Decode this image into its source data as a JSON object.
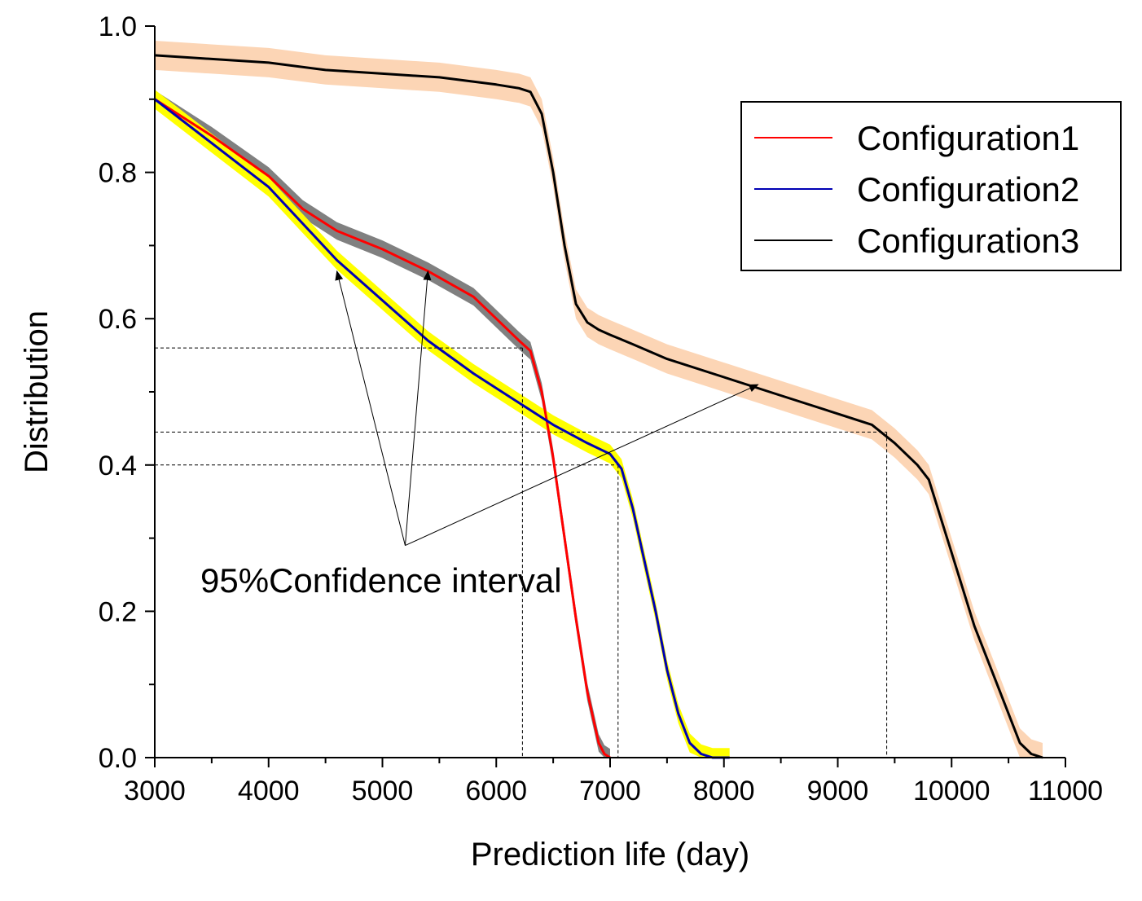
{
  "chart_data": {
    "type": "line",
    "title": "",
    "xlabel": "Prediction life (day)",
    "ylabel": "Distribution",
    "xlim": [
      3000,
      11000
    ],
    "ylim": [
      0,
      1.0
    ],
    "x_ticks": [
      3000,
      4000,
      5000,
      6000,
      7000,
      8000,
      9000,
      10000,
      11000
    ],
    "x_tick_labels": [
      "3000",
      "4000",
      "5000",
      "6000",
      "7000",
      "8000",
      "9000",
      "10000",
      "11000"
    ],
    "y_ticks": [
      0,
      0.2,
      0.4,
      0.6,
      0.8,
      1.0
    ],
    "y_tick_labels": [
      "0.0",
      "0.2",
      "0.4",
      "0.6",
      "0.8",
      "1.0"
    ],
    "grid": false,
    "legend_position": "top-right",
    "series": [
      {
        "name": "Configuration1",
        "color": "#ff0000",
        "band_color": "#808080",
        "band_halfwidth": 0.012,
        "x": [
          3000,
          3500,
          4000,
          4300,
          4600,
          5000,
          5400,
          5800,
          6000,
          6200,
          6300,
          6400,
          6500,
          6600,
          6700,
          6800,
          6900,
          6950,
          7000
        ],
        "y": [
          0.9,
          0.85,
          0.795,
          0.75,
          0.72,
          0.695,
          0.665,
          0.63,
          0.6,
          0.57,
          0.556,
          0.5,
          0.41,
          0.3,
          0.19,
          0.09,
          0.02,
          0.005,
          0.0
        ]
      },
      {
        "name": "Configuration2",
        "color": "#0000b4",
        "band_color": "#ffff00",
        "band_halfwidth": 0.013,
        "x": [
          3000,
          3500,
          4000,
          4300,
          4600,
          5000,
          5400,
          5800,
          6200,
          6500,
          6800,
          7000,
          7100,
          7200,
          7300,
          7400,
          7500,
          7600,
          7700,
          7800,
          7900,
          8050
        ],
        "y": [
          0.9,
          0.84,
          0.78,
          0.73,
          0.68,
          0.625,
          0.57,
          0.525,
          0.485,
          0.455,
          0.43,
          0.415,
          0.395,
          0.34,
          0.27,
          0.2,
          0.12,
          0.06,
          0.02,
          0.005,
          0.0,
          0.0
        ]
      },
      {
        "name": "Configuration3",
        "color": "#000000",
        "band_color": "#fcd5b5",
        "band_halfwidth": 0.02,
        "x": [
          3000,
          3500,
          4000,
          4500,
          5000,
          5500,
          6000,
          6200,
          6300,
          6400,
          6500,
          6600,
          6700,
          6800,
          6900,
          7000,
          7200,
          7500,
          8000,
          8500,
          9000,
          9300,
          9500,
          9700,
          9800,
          9900,
          10000,
          10200,
          10400,
          10600,
          10700,
          10800
        ],
        "y": [
          0.96,
          0.955,
          0.95,
          0.94,
          0.935,
          0.93,
          0.92,
          0.915,
          0.91,
          0.88,
          0.8,
          0.7,
          0.62,
          0.595,
          0.585,
          0.578,
          0.565,
          0.545,
          0.52,
          0.495,
          0.47,
          0.455,
          0.43,
          0.4,
          0.38,
          0.33,
          0.28,
          0.18,
          0.1,
          0.02,
          0.005,
          0.0
        ]
      }
    ],
    "reference_lines": [
      {
        "y": 0.56,
        "x_end": 6230
      },
      {
        "y": 0.445,
        "x_end": 9430
      },
      {
        "y": 0.4,
        "x_end": 7070
      }
    ],
    "vertical_reference_lines": [
      {
        "x": 6230,
        "y_end": 0.56
      },
      {
        "x": 7070,
        "y_end": 0.4
      },
      {
        "x": 9430,
        "y_end": 0.445
      }
    ],
    "annotation": {
      "text": "95%Confidence interval",
      "origin": {
        "x": 5200,
        "y": 0.29
      },
      "arrow_targets": [
        {
          "x": 4600,
          "y": 0.665
        },
        {
          "x": 5400,
          "y": 0.665
        },
        {
          "x": 8300,
          "y": 0.51
        }
      ]
    }
  }
}
